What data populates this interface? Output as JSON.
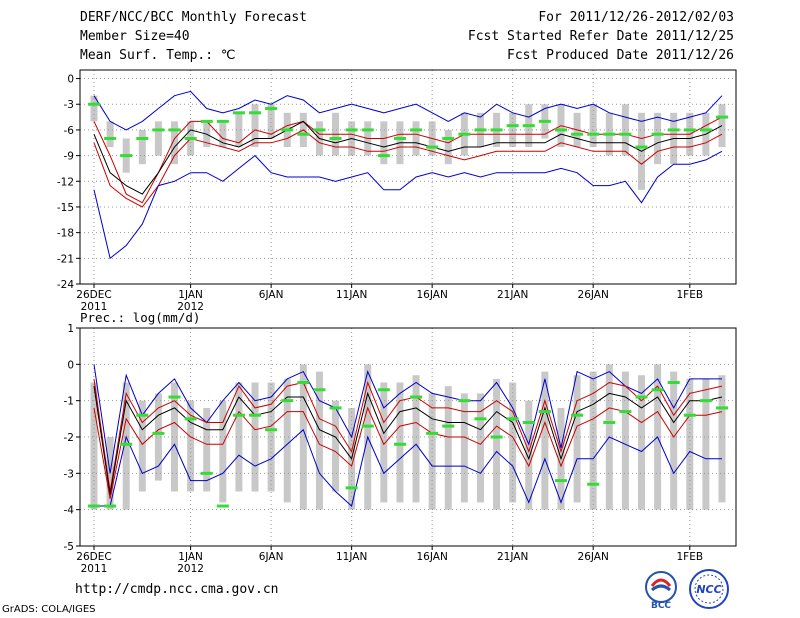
{
  "header": {
    "title": "DERF/NCC/BCC Monthly Forecast",
    "member_size": "Member Size=40",
    "variable": "Mean Surf. Temp.: ℃",
    "period": "For 2011/12/26-2012/02/03",
    "started": "Fcst Started Refer Date 2011/12/25",
    "produced": "Fcst Produced Date 2011/12/26"
  },
  "footer": {
    "url": "http://cmdp.ncc.cma.gov.cn",
    "grads": "GrADS: COLA/IGES",
    "logo_left": "BCC",
    "logo_right": "NCC"
  },
  "colors": {
    "spread": "#c8c8c8",
    "envelope": "#0000cc",
    "quartile": "#cc0000",
    "mean": "#000000",
    "marker": "#33dd33",
    "grid": "#999999"
  },
  "chart_data": [
    {
      "type": "line",
      "title": "Mean Surf. Temp.: ℃",
      "ylim": [
        -24,
        1
      ],
      "yticks": [
        "0",
        "-3",
        "-6",
        "-9",
        "-12",
        "-15",
        "-18",
        "-21",
        "-24"
      ],
      "ytick_values": [
        0,
        -3,
        -6,
        -9,
        -12,
        -15,
        -18,
        -21,
        -24
      ],
      "xticks": [
        {
          "day": 0,
          "label": "26DEC",
          "sub": "2011"
        },
        {
          "day": 6,
          "label": "1JAN",
          "sub": "2012"
        },
        {
          "day": 11,
          "label": "6JAN",
          "sub": ""
        },
        {
          "day": 16,
          "label": "11JAN",
          "sub": ""
        },
        {
          "day": 21,
          "label": "16JAN",
          "sub": ""
        },
        {
          "day": 26,
          "label": "21JAN",
          "sub": ""
        },
        {
          "day": 31,
          "label": "26JAN",
          "sub": ""
        },
        {
          "day": 37,
          "label": "1FEB",
          "sub": ""
        }
      ],
      "days": 40,
      "series": [
        {
          "name": "max",
          "values": [
            -2,
            -5,
            -6,
            -5,
            -3.5,
            -2,
            -1.5,
            -3.5,
            -4,
            -3.5,
            -2.5,
            -3,
            -2,
            -2.5,
            -4,
            -3.5,
            -3,
            -3.5,
            -4,
            -3.5,
            -3,
            -4,
            -5,
            -4,
            -4.5,
            -3,
            -4,
            -4.5,
            -3.5,
            -3,
            -3.5,
            -3,
            -4,
            -4.5,
            -5,
            -4.5,
            -5,
            -4.5,
            -4,
            -2
          ]
        },
        {
          "name": "upper",
          "values": [
            -5,
            -9,
            -13.5,
            -14.5,
            -11,
            -7,
            -5,
            -5,
            -7,
            -7.5,
            -6,
            -6.5,
            -5.5,
            -5,
            -6.5,
            -6.5,
            -6.5,
            -7,
            -7,
            -6.5,
            -6.5,
            -7,
            -7.5,
            -6.5,
            -6.5,
            -6.5,
            -6.5,
            -6.5,
            -6.5,
            -5.5,
            -6,
            -6.5,
            -6.5,
            -6.5,
            -7,
            -6.5,
            -6.5,
            -6.5,
            -5.5,
            -4.5
          ]
        },
        {
          "name": "mean",
          "values": [
            -6.5,
            -11,
            -12.5,
            -13.5,
            -11,
            -8,
            -6,
            -6.5,
            -7.5,
            -8,
            -7,
            -7,
            -6,
            -5,
            -7,
            -7.5,
            -7,
            -7.5,
            -8,
            -7.5,
            -7.5,
            -8,
            -8.5,
            -8,
            -8,
            -7.5,
            -7.5,
            -7.5,
            -7.5,
            -6.5,
            -7,
            -7.5,
            -7.5,
            -7.5,
            -8.5,
            -7.5,
            -7,
            -7,
            -6.5,
            -5.5
          ]
        },
        {
          "name": "lower",
          "values": [
            -7.5,
            -12.5,
            -14,
            -15,
            -12.5,
            -9,
            -7,
            -7.5,
            -8,
            -8.5,
            -7.5,
            -7.5,
            -7,
            -6,
            -7.5,
            -8,
            -8,
            -8.5,
            -8.5,
            -8,
            -8,
            -8.5,
            -9,
            -9.5,
            -9,
            -8.5,
            -8.5,
            -8.5,
            -8.5,
            -7.5,
            -8,
            -8.5,
            -8.5,
            -8.5,
            -10,
            -8.5,
            -8,
            -8,
            -7.5,
            -6.5
          ]
        },
        {
          "name": "min",
          "values": [
            -13,
            -21,
            -19.5,
            -17,
            -12.5,
            -12,
            -11,
            -11,
            -12,
            -10.5,
            -9,
            -11,
            -11.5,
            -11.5,
            -11.5,
            -12,
            -11.5,
            -11,
            -13,
            -13,
            -11.5,
            -11,
            -11.5,
            -11,
            -11.5,
            -11,
            -11,
            -11,
            -11,
            -10.5,
            -11,
            -12.5,
            -12.5,
            -12,
            -14.5,
            -11.5,
            -10,
            -10,
            -9.5,
            -8.5
          ]
        },
        {
          "name": "obs_marker",
          "values": [
            -3,
            -7,
            -9,
            -7,
            -6,
            -6,
            -7,
            -5,
            -5,
            -4,
            -4,
            -3.5,
            -6,
            -6.5,
            -6,
            -7,
            -6,
            -6,
            -9,
            -7,
            -6,
            -8,
            -7,
            -6.5,
            -6,
            -6,
            -5.5,
            -5.5,
            -5,
            -6,
            -6.5,
            -6.5,
            -6.5,
            -6.5,
            -8,
            -6.5,
            -6,
            -6,
            -6,
            -4.5
          ]
        }
      ],
      "spread_boxes": [
        [
          -2,
          -5
        ],
        [
          -5,
          -8
        ],
        [
          -7,
          -11
        ],
        [
          -6,
          -10
        ],
        [
          -5,
          -9
        ],
        [
          -5,
          -10
        ],
        [
          -5,
          -9
        ],
        [
          -5,
          -8
        ],
        [
          -5,
          -8
        ],
        [
          -4,
          -8
        ],
        [
          -3,
          -8
        ],
        [
          -3,
          -7
        ],
        [
          -4,
          -8
        ],
        [
          -4,
          -8
        ],
        [
          -5,
          -9
        ],
        [
          -4,
          -9
        ],
        [
          -5,
          -9
        ],
        [
          -5,
          -9
        ],
        [
          -5,
          -10
        ],
        [
          -5,
          -10
        ],
        [
          -5,
          -9
        ],
        [
          -5,
          -9
        ],
        [
          -6,
          -10
        ],
        [
          -4,
          -9
        ],
        [
          -4,
          -8
        ],
        [
          -4,
          -8
        ],
        [
          -4,
          -8
        ],
        [
          -3,
          -8
        ],
        [
          -3,
          -7
        ],
        [
          -3,
          -8
        ],
        [
          -4,
          -8
        ],
        [
          -3,
          -8
        ],
        [
          -4,
          -9
        ],
        [
          -3,
          -9
        ],
        [
          -4,
          -13
        ],
        [
          -4,
          -10
        ],
        [
          -4,
          -10
        ],
        [
          -4,
          -9
        ],
        [
          -4,
          -9
        ],
        [
          -3,
          -8
        ]
      ]
    },
    {
      "type": "line",
      "title": "Prec.: log(mm/d)",
      "ylim": [
        -5,
        1
      ],
      "yticks": [
        "1",
        "0",
        "-1",
        "-2",
        "-3",
        "-4",
        "-5"
      ],
      "ytick_values": [
        1,
        0,
        -1,
        -2,
        -3,
        -4,
        -5
      ],
      "xticks": [
        {
          "day": 0,
          "label": "26DEC",
          "sub": "2011"
        },
        {
          "day": 6,
          "label": "1JAN",
          "sub": "2012"
        },
        {
          "day": 11,
          "label": "6JAN",
          "sub": ""
        },
        {
          "day": 16,
          "label": "11JAN",
          "sub": ""
        },
        {
          "day": 21,
          "label": "16JAN",
          "sub": ""
        },
        {
          "day": 26,
          "label": "21JAN",
          "sub": ""
        },
        {
          "day": 31,
          "label": "26JAN",
          "sub": ""
        },
        {
          "day": 37,
          "label": "1FEB",
          "sub": ""
        }
      ],
      "days": 40,
      "series": [
        {
          "name": "max",
          "values": [
            0,
            -3,
            -0.3,
            -1.4,
            -0.8,
            -0.4,
            -1.2,
            -1.6,
            -1.0,
            -0.5,
            -1.0,
            -0.9,
            -0.4,
            -0.2,
            -1.0,
            -1.2,
            -2.0,
            -0.2,
            -1.2,
            -0.8,
            -0.5,
            -0.8,
            -0.9,
            -1.0,
            -1.0,
            -0.5,
            -1.2,
            -2.2,
            -0.4,
            -2.3,
            -0.2,
            -0.4,
            -0.2,
            -0.6,
            -0.8,
            -0.4,
            -1.2,
            -0.4,
            -0.4,
            -0.4
          ]
        },
        {
          "name": "upper",
          "values": [
            -0.4,
            -3.5,
            -0.8,
            -1.6,
            -1.2,
            -1.0,
            -1.4,
            -1.6,
            -1.6,
            -0.6,
            -1.2,
            -1.1,
            -0.6,
            -0.5,
            -1.5,
            -1.7,
            -2.4,
            -0.5,
            -1.6,
            -1.0,
            -0.9,
            -1.2,
            -1.2,
            -1.3,
            -1.3,
            -1.0,
            -1.3,
            -2.4,
            -1.0,
            -2.4,
            -1.0,
            -0.8,
            -0.5,
            -0.6,
            -1.0,
            -0.6,
            -1.4,
            -0.8,
            -0.7,
            -0.6
          ]
        },
        {
          "name": "mean",
          "values": [
            -0.6,
            -3.6,
            -1.0,
            -1.8,
            -1.4,
            -1.2,
            -1.6,
            -1.8,
            -1.8,
            -0.9,
            -1.4,
            -1.3,
            -0.9,
            -0.9,
            -1.8,
            -2.0,
            -2.6,
            -0.8,
            -1.9,
            -1.3,
            -1.2,
            -1.5,
            -1.6,
            -1.6,
            -1.8,
            -1.3,
            -1.6,
            -2.6,
            -1.2,
            -2.6,
            -1.3,
            -1.1,
            -0.8,
            -0.9,
            -1.2,
            -0.9,
            -1.6,
            -1.0,
            -1.0,
            -0.9
          ]
        },
        {
          "name": "lower",
          "values": [
            -1.2,
            -3.7,
            -1.5,
            -2.2,
            -1.8,
            -1.6,
            -2.0,
            -2.2,
            -2.2,
            -1.3,
            -1.8,
            -1.7,
            -1.3,
            -1.3,
            -2.2,
            -2.4,
            -2.8,
            -1.2,
            -2.2,
            -1.7,
            -1.6,
            -1.9,
            -2.0,
            -2.0,
            -2.2,
            -1.7,
            -2.0,
            -2.8,
            -1.6,
            -2.8,
            -1.7,
            -1.5,
            -1.2,
            -1.3,
            -1.6,
            -1.3,
            -2.0,
            -1.4,
            -1.4,
            -1.3
          ]
        },
        {
          "name": "min",
          "values": [
            -3.9,
            -3.9,
            -2.0,
            -3.0,
            -2.8,
            -2.2,
            -3.2,
            -3.2,
            -3.0,
            -2.5,
            -2.8,
            -2.6,
            -2.2,
            -1.8,
            -3.0,
            -3.5,
            -3.9,
            -2.0,
            -3.0,
            -2.6,
            -2.2,
            -2.8,
            -2.8,
            -2.8,
            -3.0,
            -2.4,
            -2.8,
            -3.8,
            -2.6,
            -3.8,
            -2.6,
            -2.6,
            -2.0,
            -2.2,
            -2.4,
            -2.0,
            -3.0,
            -2.4,
            -2.6,
            -2.6
          ]
        },
        {
          "name": "obs_marker",
          "values": [
            -3.9,
            -3.9,
            -2.2,
            -1.4,
            -1.9,
            -0.9,
            -1.5,
            -3.0,
            -3.9,
            -1.4,
            -1.4,
            -1.8,
            -1.0,
            -0.5,
            -0.7,
            -1.2,
            -3.4,
            -1.7,
            -0.7,
            -2.2,
            -0.9,
            -1.9,
            -1.7,
            -1.0,
            -1.5,
            -2.0,
            -1.5,
            -1.6,
            -1.3,
            -3.2,
            -1.4,
            -3.3,
            -1.6,
            -1.3,
            -0.9,
            -0.7,
            -0.5,
            -1.4,
            -1.0,
            -1.2
          ]
        }
      ],
      "spread_boxes": [
        [
          -0.5,
          -4
        ],
        [
          -2,
          -4
        ],
        [
          -0.5,
          -4
        ],
        [
          -1,
          -3.5
        ],
        [
          -0.8,
          -3.2
        ],
        [
          -0.5,
          -3.5
        ],
        [
          -1,
          -3.5
        ],
        [
          -1.2,
          -3.5
        ],
        [
          -1,
          -3.8
        ],
        [
          -0.5,
          -3.5
        ],
        [
          -0.5,
          -3.5
        ],
        [
          -0.5,
          -3.5
        ],
        [
          -0.4,
          -3.8
        ],
        [
          0,
          -4
        ],
        [
          -0.2,
          -4
        ],
        [
          -1,
          -3.5
        ],
        [
          -1.2,
          -4
        ],
        [
          0,
          -4
        ],
        [
          -0.5,
          -3.8
        ],
        [
          -0.5,
          -3.8
        ],
        [
          -0.3,
          -3.8
        ],
        [
          -0.8,
          -4
        ],
        [
          -0.6,
          -4
        ],
        [
          -0.8,
          -3.8
        ],
        [
          -0.8,
          -3.8
        ],
        [
          -0.4,
          -4
        ],
        [
          -0.5,
          -3.8
        ],
        [
          -1,
          -4
        ],
        [
          -0.2,
          -4
        ],
        [
          -1.2,
          -4
        ],
        [
          -0.3,
          -3.8
        ],
        [
          -0.2,
          -4
        ],
        [
          0,
          -4
        ],
        [
          -0.2,
          -4
        ],
        [
          -0.3,
          -4
        ],
        [
          0,
          -4
        ],
        [
          -0.2,
          -4
        ],
        [
          -0.4,
          -4
        ],
        [
          -0.4,
          -4
        ],
        [
          -0.3,
          -3.8
        ]
      ]
    }
  ]
}
